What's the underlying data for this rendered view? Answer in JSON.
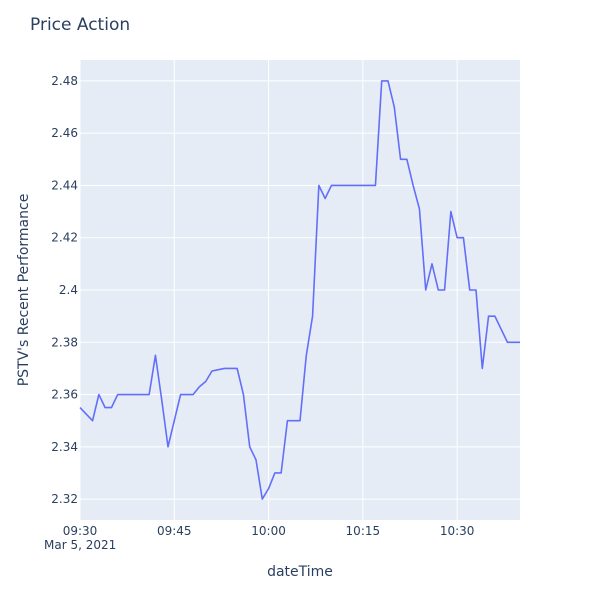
{
  "chart_data": {
    "type": "line",
    "title": "Price Action",
    "xlabel": "dateTime",
    "ylabel": "PSTV's Recent Performance",
    "date_label": "Mar 5, 2021",
    "grid": true,
    "xlim": [
      "09:30",
      "10:40"
    ],
    "ylim": [
      2.312,
      2.488
    ],
    "x_ticks": [
      "09:30",
      "09:45",
      "10:00",
      "10:15",
      "10:30"
    ],
    "y_ticks": [
      "2.32",
      "2.34",
      "2.36",
      "2.38",
      "2.4",
      "2.42",
      "2.44",
      "2.46",
      "2.48"
    ],
    "series": [
      {
        "color": "#636efa",
        "x": [
          "09:30",
          "09:31",
          "09:32",
          "09:33",
          "09:34",
          "09:35",
          "09:36",
          "09:37",
          "09:38",
          "09:39",
          "09:40",
          "09:41",
          "09:42",
          "09:43",
          "09:44",
          "09:45",
          "09:46",
          "09:47",
          "09:48",
          "09:49",
          "09:50",
          "09:51",
          "09:52",
          "09:53",
          "09:54",
          "09:55",
          "09:56",
          "09:57",
          "09:58",
          "09:59",
          "10:00",
          "10:01",
          "10:02",
          "10:03",
          "10:04",
          "10:05",
          "10:06",
          "10:07",
          "10:08",
          "10:09",
          "10:10",
          "10:11",
          "10:12",
          "10:13",
          "10:14",
          "10:15",
          "10:16",
          "10:17",
          "10:18",
          "10:19",
          "10:20",
          "10:21",
          "10:22",
          "10:23",
          "10:24",
          "10:25",
          "10:26",
          "10:27",
          "10:28",
          "10:29",
          "10:30",
          "10:31",
          "10:32",
          "10:33",
          "10:34",
          "10:35",
          "10:36",
          "10:37",
          "10:38",
          "10:39",
          "10:40"
        ],
        "y": [
          2.355,
          2.3525,
          2.35,
          2.36,
          2.355,
          2.355,
          2.36,
          2.36,
          2.36,
          2.36,
          2.36,
          2.36,
          2.375,
          2.358,
          2.34,
          2.35,
          2.36,
          2.36,
          2.36,
          2.363,
          2.365,
          2.369,
          2.3695,
          2.37,
          2.37,
          2.37,
          2.36,
          2.34,
          2.335,
          2.32,
          2.324,
          2.33,
          2.33,
          2.35,
          2.35,
          2.35,
          2.375,
          2.39,
          2.44,
          2.435,
          2.44,
          2.44,
          2.44,
          2.44,
          2.44,
          2.44,
          2.44,
          2.44,
          2.48,
          2.48,
          2.47,
          2.45,
          2.45,
          2.44,
          2.431,
          2.4,
          2.41,
          2.4,
          2.4,
          2.43,
          2.42,
          2.42,
          2.4,
          2.4,
          2.37,
          2.39,
          2.39,
          2.385,
          2.38,
          2.38,
          2.38
        ]
      }
    ]
  }
}
